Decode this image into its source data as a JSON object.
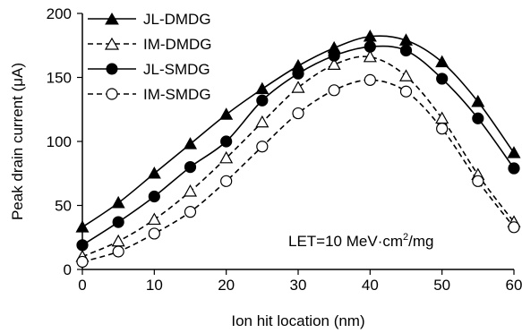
{
  "chart_data": {
    "type": "line",
    "title": "",
    "xlabel": "Ion hit location (nm)",
    "ylabel": "Peak drain current (μA)",
    "xlim": [
      0,
      60
    ],
    "ylim": [
      0,
      200
    ],
    "xticks": [
      0,
      10,
      20,
      30,
      40,
      50,
      60
    ],
    "yticks": [
      0,
      50,
      100,
      150,
      200
    ],
    "grid": false,
    "legend_position": "top-left",
    "annotation": {
      "prefix": "LET=10 MeV·cm",
      "sup": "2",
      "suffix": "/mg"
    },
    "x": [
      0,
      5,
      10,
      15,
      20,
      25,
      30,
      35,
      40,
      45,
      50,
      55,
      60
    ],
    "series": [
      {
        "name": "JL-DMDG",
        "line": "solid",
        "marker": "triangle",
        "filled": true,
        "values": [
          33,
          52,
          75,
          98,
          121,
          141,
          159,
          173,
          182,
          179,
          162,
          131,
          91
        ]
      },
      {
        "name": "IM-DMDG",
        "line": "dashed",
        "marker": "triangle",
        "filled": false,
        "values": [
          10,
          22,
          39,
          61,
          87,
          115,
          142,
          160,
          166,
          151,
          118,
          74,
          37
        ]
      },
      {
        "name": "JL-SMDG",
        "line": "solid",
        "marker": "circle",
        "filled": true,
        "values": [
          19,
          37,
          57,
          80,
          100,
          132,
          153,
          167,
          174,
          171,
          149,
          118,
          79
        ]
      },
      {
        "name": "IM-SMDG",
        "line": "dashed",
        "marker": "circle",
        "filled": false,
        "values": [
          6,
          14,
          28,
          45,
          69,
          96,
          122,
          140,
          148,
          139,
          110,
          69,
          33
        ]
      }
    ]
  }
}
